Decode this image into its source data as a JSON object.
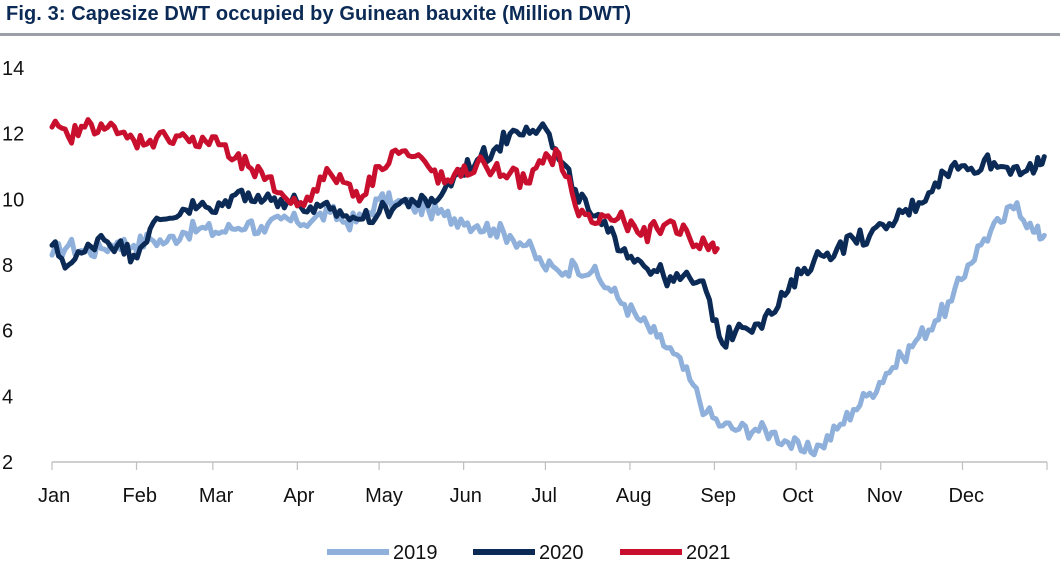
{
  "title": "Fig. 3: Capesize DWT occupied by Guinean bauxite (Million DWT)",
  "chart_data": {
    "type": "line",
    "title": "Fig. 3: Capesize DWT occupied by Guinean bauxite (Million DWT)",
    "xlabel": "",
    "ylabel": "",
    "ylim": [
      2,
      14
    ],
    "yticks": [
      2,
      4,
      6,
      8,
      10,
      12,
      14
    ],
    "xlim": [
      0,
      365
    ],
    "x_tick_labels": [
      "Jan",
      "Feb",
      "Mar",
      "Apr",
      "May",
      "Jun",
      "Jul",
      "Aug",
      "Sep",
      "Oct",
      "Nov",
      "Dec"
    ],
    "x_tick_days": [
      0,
      31,
      59,
      90,
      120,
      151,
      181,
      212,
      243,
      273,
      304,
      334
    ],
    "grid": false,
    "legend_position": "bottom",
    "series": [
      {
        "name": "2019",
        "color": "#8fb0da",
        "x": [
          0,
          6,
          12,
          18,
          24,
          30,
          36,
          42,
          48,
          54,
          60,
          66,
          72,
          78,
          84,
          90,
          96,
          102,
          108,
          114,
          120,
          126,
          132,
          138,
          144,
          150,
          156,
          162,
          168,
          174,
          180,
          186,
          192,
          198,
          204,
          210,
          216,
          222,
          228,
          234,
          240,
          246,
          252,
          258,
          264,
          270,
          276,
          282,
          288,
          294,
          300,
          306,
          312,
          318,
          324,
          330,
          336,
          342,
          348,
          354,
          360,
          364
        ],
        "values": [
          8.3,
          8.6,
          8.4,
          8.5,
          8.7,
          8.6,
          8.8,
          8.7,
          9.0,
          9.1,
          9.0,
          9.1,
          9.3,
          9.0,
          9.4,
          9.3,
          9.4,
          9.6,
          9.3,
          9.4,
          10.0,
          9.9,
          9.8,
          9.7,
          9.5,
          9.4,
          9.2,
          9.1,
          8.9,
          8.6,
          8.0,
          7.8,
          8.0,
          7.8,
          7.3,
          6.8,
          6.3,
          5.8,
          5.3,
          4.5,
          3.5,
          3.1,
          3.0,
          3.0,
          2.9,
          2.6,
          2.3,
          2.5,
          3.0,
          3.6,
          4.1,
          4.7,
          5.2,
          5.8,
          6.3,
          6.9,
          8.0,
          8.8,
          9.3,
          9.9,
          9.0,
          8.9
        ]
      },
      {
        "name": "2020",
        "color": "#0b2a55",
        "x": [
          0,
          6,
          12,
          18,
          24,
          30,
          36,
          42,
          48,
          54,
          60,
          66,
          72,
          78,
          84,
          90,
          96,
          102,
          108,
          114,
          120,
          126,
          132,
          138,
          144,
          150,
          156,
          162,
          168,
          174,
          180,
          186,
          192,
          198,
          204,
          210,
          216,
          222,
          228,
          234,
          240,
          246,
          252,
          258,
          264,
          270,
          276,
          282,
          288,
          294,
          300,
          306,
          312,
          318,
          324,
          330,
          336,
          342,
          348,
          354,
          360,
          364
        ],
        "values": [
          8.6,
          8.0,
          8.4,
          8.9,
          8.6,
          8.3,
          9.1,
          9.4,
          9.7,
          9.8,
          9.6,
          10.1,
          10.2,
          10.0,
          10.0,
          9.9,
          9.6,
          9.7,
          9.5,
          9.4,
          9.6,
          9.8,
          10.0,
          9.8,
          10.3,
          10.9,
          11.2,
          11.5,
          12.0,
          12.2,
          12.3,
          11.2,
          10.3,
          9.5,
          9.0,
          8.5,
          8.1,
          7.8,
          7.5,
          7.6,
          7.2,
          5.6,
          6.2,
          6.2,
          6.5,
          7.2,
          7.9,
          8.3,
          8.5,
          8.8,
          8.9,
          9.1,
          9.6,
          9.9,
          10.5,
          11.0,
          10.9,
          11.2,
          11.0,
          11.0,
          10.8,
          11.3
        ]
      },
      {
        "name": "2021",
        "color": "#c8102e",
        "x": [
          0,
          6,
          12,
          18,
          24,
          30,
          36,
          42,
          48,
          54,
          60,
          66,
          72,
          78,
          84,
          90,
          96,
          102,
          108,
          114,
          120,
          126,
          132,
          138,
          144,
          150,
          156,
          162,
          168,
          174,
          180,
          186,
          192,
          198,
          204,
          210,
          216,
          222,
          228,
          234,
          240,
          244
        ],
        "values": [
          12.2,
          11.9,
          12.2,
          12.3,
          12.0,
          11.8,
          11.8,
          11.9,
          12.0,
          11.6,
          11.9,
          11.2,
          11.0,
          10.6,
          10.2,
          9.8,
          10.3,
          10.8,
          10.5,
          10.1,
          11.0,
          11.5,
          11.3,
          11.0,
          10.5,
          10.7,
          11.1,
          10.9,
          10.8,
          10.5,
          11.1,
          11.4,
          9.8,
          9.3,
          9.5,
          9.3,
          8.9,
          9.1,
          9.3,
          8.8,
          8.6,
          8.5
        ]
      }
    ]
  }
}
